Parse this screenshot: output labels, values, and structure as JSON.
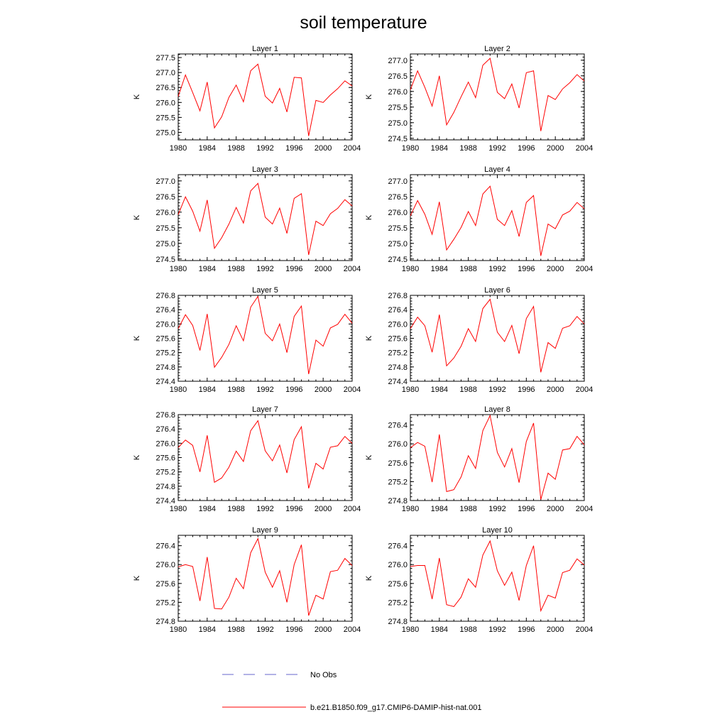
{
  "title": "soil temperature",
  "legend": {
    "no_obs_label": "No Obs",
    "no_obs_color": "#6666cc",
    "run_label": "b.e21.B1850.f09_g17.CMIP6-DAMIP-hist-nat.001",
    "run_color": "#ff0000"
  },
  "chart_data": [
    {
      "type": "line",
      "title": "Layer 1",
      "ylabel": "K",
      "xlim": [
        1980,
        2004
      ],
      "xticks": [
        1980,
        1984,
        1988,
        1992,
        1996,
        2000,
        2004
      ],
      "ylim": [
        274.75,
        277.62
      ],
      "yticks": [
        275.0,
        275.5,
        276.0,
        276.5,
        277.0,
        277.5
      ],
      "x": [
        1980,
        1981,
        1982,
        1983,
        1984,
        1985,
        1986,
        1987,
        1988,
        1989,
        1990,
        1991,
        1992,
        1993,
        1994,
        1995,
        1996,
        1997,
        1998,
        1999,
        2000,
        2001,
        2002,
        2003,
        2004
      ],
      "series": [
        {
          "name": "b.e21.B1850.f09_g17.CMIP6-DAMIP-hist-nat.001",
          "values": [
            276.2,
            276.92,
            276.33,
            275.72,
            276.68,
            275.15,
            275.52,
            276.17,
            276.58,
            276.02,
            277.06,
            277.28,
            276.21,
            275.98,
            276.47,
            275.68,
            276.84,
            276.82,
            274.88,
            276.07,
            276.0,
            276.25,
            276.46,
            276.72,
            276.55
          ]
        }
      ]
    },
    {
      "type": "line",
      "title": "Layer 2",
      "ylabel": "K",
      "xlim": [
        1980,
        2004
      ],
      "xticks": [
        1980,
        1984,
        1988,
        1992,
        1996,
        2000,
        2004
      ],
      "ylim": [
        274.45,
        277.2
      ],
      "yticks": [
        274.5,
        275.0,
        275.5,
        276.0,
        276.5,
        277.0
      ],
      "x": [
        1980,
        1981,
        1982,
        1983,
        1984,
        1985,
        1986,
        1987,
        1988,
        1989,
        1990,
        1991,
        1992,
        1993,
        1994,
        1995,
        1996,
        1997,
        1998,
        1999,
        2000,
        2001,
        2002,
        2003,
        2004
      ],
      "series": [
        {
          "name": "b.e21.B1850.f09_g17.CMIP6-DAMIP-hist-nat.001",
          "values": [
            276.05,
            276.66,
            276.13,
            275.53,
            276.5,
            274.93,
            275.33,
            275.83,
            276.3,
            275.8,
            276.84,
            277.06,
            275.97,
            275.77,
            276.24,
            275.47,
            276.6,
            276.66,
            274.73,
            275.87,
            275.74,
            276.08,
            276.28,
            276.54,
            276.33
          ]
        }
      ]
    },
    {
      "type": "line",
      "title": "Layer 3",
      "ylabel": "K",
      "xlim": [
        1980,
        2004
      ],
      "xticks": [
        1980,
        1984,
        1988,
        1992,
        1996,
        2000,
        2004
      ],
      "ylim": [
        274.45,
        277.2
      ],
      "yticks": [
        274.5,
        275.0,
        275.5,
        276.0,
        276.5,
        277.0
      ],
      "x": [
        1980,
        1981,
        1982,
        1983,
        1984,
        1985,
        1986,
        1987,
        1988,
        1989,
        1990,
        1991,
        1992,
        1993,
        1994,
        1995,
        1996,
        1997,
        1998,
        1999,
        2000,
        2001,
        2002,
        2003,
        2004
      ],
      "series": [
        {
          "name": "b.e21.B1850.f09_g17.CMIP6-DAMIP-hist-nat.001",
          "values": [
            275.92,
            276.49,
            276.03,
            275.39,
            276.39,
            274.84,
            275.18,
            275.62,
            276.15,
            275.65,
            276.68,
            276.92,
            275.84,
            275.62,
            276.13,
            275.32,
            276.44,
            276.59,
            274.63,
            275.71,
            275.57,
            275.95,
            276.12,
            276.4,
            276.2
          ]
        }
      ]
    },
    {
      "type": "line",
      "title": "Layer 4",
      "ylabel": "K",
      "xlim": [
        1980,
        2004
      ],
      "xticks": [
        1980,
        1984,
        1988,
        1992,
        1996,
        2000,
        2004
      ],
      "ylim": [
        274.45,
        277.2
      ],
      "yticks": [
        274.5,
        275.0,
        275.5,
        276.0,
        276.5,
        277.0
      ],
      "x": [
        1980,
        1981,
        1982,
        1983,
        1984,
        1985,
        1986,
        1987,
        1988,
        1989,
        1990,
        1991,
        1992,
        1993,
        1994,
        1995,
        1996,
        1997,
        1998,
        1999,
        2000,
        2001,
        2002,
        2003,
        2004
      ],
      "series": [
        {
          "name": "b.e21.B1850.f09_g17.CMIP6-DAMIP-hist-nat.001",
          "values": [
            275.88,
            276.37,
            275.93,
            275.29,
            276.33,
            274.79,
            275.13,
            275.51,
            276.02,
            275.57,
            276.58,
            276.83,
            275.77,
            275.57,
            276.05,
            275.22,
            276.31,
            276.53,
            274.6,
            275.62,
            275.47,
            275.91,
            276.03,
            276.31,
            276.11
          ]
        }
      ]
    },
    {
      "type": "line",
      "title": "Layer 5",
      "ylabel": "K",
      "xlim": [
        1980,
        2004
      ],
      "xticks": [
        1980,
        1984,
        1988,
        1992,
        1996,
        2000,
        2004
      ],
      "ylim": [
        274.4,
        276.8
      ],
      "yticks": [
        274.4,
        274.8,
        275.2,
        275.6,
        276.0,
        276.4,
        276.8
      ],
      "x": [
        1980,
        1981,
        1982,
        1983,
        1984,
        1985,
        1986,
        1987,
        1988,
        1989,
        1990,
        1991,
        1992,
        1993,
        1994,
        1995,
        1996,
        1997,
        1998,
        1999,
        2000,
        2001,
        2002,
        2003,
        2004
      ],
      "series": [
        {
          "name": "b.e21.B1850.f09_g17.CMIP6-DAMIP-hist-nat.001",
          "values": [
            275.87,
            276.26,
            275.96,
            275.26,
            276.28,
            274.79,
            275.07,
            275.43,
            275.95,
            275.53,
            276.47,
            276.77,
            275.74,
            275.53,
            276.0,
            275.2,
            276.21,
            276.5,
            274.6,
            275.55,
            275.38,
            275.89,
            275.99,
            276.27,
            276.02
          ]
        }
      ]
    },
    {
      "type": "line",
      "title": "Layer 6",
      "ylabel": "K",
      "xlim": [
        1980,
        2004
      ],
      "xticks": [
        1980,
        1984,
        1988,
        1992,
        1996,
        2000,
        2004
      ],
      "ylim": [
        274.4,
        276.8
      ],
      "yticks": [
        274.4,
        274.8,
        275.2,
        275.6,
        276.0,
        276.4,
        276.8
      ],
      "x": [
        1980,
        1981,
        1982,
        1983,
        1984,
        1985,
        1986,
        1987,
        1988,
        1989,
        1990,
        1991,
        1992,
        1993,
        1994,
        1995,
        1996,
        1997,
        1998,
        1999,
        2000,
        2001,
        2002,
        2003,
        2004
      ],
      "series": [
        {
          "name": "b.e21.B1850.f09_g17.CMIP6-DAMIP-hist-nat.001",
          "values": [
            275.87,
            276.19,
            275.95,
            275.21,
            276.26,
            274.83,
            275.05,
            275.38,
            275.87,
            275.51,
            276.43,
            276.69,
            275.77,
            275.51,
            275.96,
            275.17,
            276.15,
            276.49,
            274.65,
            275.48,
            275.32,
            275.88,
            275.95,
            276.21,
            276.0
          ]
        }
      ]
    },
    {
      "type": "line",
      "title": "Layer 7",
      "ylabel": "K",
      "xlim": [
        1980,
        2004
      ],
      "xticks": [
        1980,
        1984,
        1988,
        1992,
        1996,
        2000,
        2004
      ],
      "ylim": [
        274.4,
        276.8
      ],
      "yticks": [
        274.4,
        274.8,
        275.2,
        275.6,
        276.0,
        276.4,
        276.8
      ],
      "x": [
        1980,
        1981,
        1982,
        1983,
        1984,
        1985,
        1986,
        1987,
        1988,
        1989,
        1990,
        1991,
        1992,
        1993,
        1994,
        1995,
        1996,
        1997,
        1998,
        1999,
        2000,
        2001,
        2002,
        2003,
        2004
      ],
      "series": [
        {
          "name": "b.e21.B1850.f09_g17.CMIP6-DAMIP-hist-nat.001",
          "values": [
            275.88,
            276.09,
            275.94,
            275.2,
            276.22,
            274.91,
            275.03,
            275.33,
            275.78,
            275.49,
            276.35,
            276.63,
            275.79,
            275.51,
            275.95,
            275.17,
            276.1,
            276.46,
            274.74,
            275.44,
            275.28,
            275.89,
            275.93,
            276.19,
            276.0
          ]
        }
      ]
    },
    {
      "type": "line",
      "title": "Layer 8",
      "ylabel": "K",
      "xlim": [
        1980,
        2004
      ],
      "xticks": [
        1980,
        1984,
        1988,
        1992,
        1996,
        2000,
        2004
      ],
      "ylim": [
        274.8,
        276.62
      ],
      "yticks": [
        274.8,
        275.2,
        275.6,
        276.0,
        276.4
      ],
      "x": [
        1980,
        1981,
        1982,
        1983,
        1984,
        1985,
        1986,
        1987,
        1988,
        1989,
        1990,
        1991,
        1992,
        1993,
        1994,
        1995,
        1996,
        1997,
        1998,
        1999,
        2000,
        2001,
        2002,
        2003,
        2004
      ],
      "series": [
        {
          "name": "b.e21.B1850.f09_g17.CMIP6-DAMIP-hist-nat.001",
          "values": [
            275.92,
            276.03,
            275.95,
            275.19,
            276.2,
            274.99,
            275.03,
            275.3,
            275.75,
            275.48,
            276.28,
            276.6,
            275.82,
            275.51,
            275.9,
            275.18,
            276.05,
            276.44,
            274.82,
            275.38,
            275.25,
            275.87,
            275.9,
            276.16,
            275.98
          ]
        }
      ]
    },
    {
      "type": "line",
      "title": "Layer 9",
      "ylabel": "K",
      "xlim": [
        1980,
        2004
      ],
      "xticks": [
        1980,
        1984,
        1988,
        1992,
        1996,
        2000,
        2004
      ],
      "ylim": [
        274.8,
        276.62
      ],
      "yticks": [
        274.8,
        275.2,
        275.6,
        276.0,
        276.4
      ],
      "x": [
        1980,
        1981,
        1982,
        1983,
        1984,
        1985,
        1986,
        1987,
        1988,
        1989,
        1990,
        1991,
        1992,
        1993,
        1994,
        1995,
        1996,
        1997,
        1998,
        1999,
        2000,
        2001,
        2002,
        2003,
        2004
      ],
      "series": [
        {
          "name": "b.e21.B1850.f09_g17.CMIP6-DAMIP-hist-nat.001",
          "values": [
            275.95,
            276.0,
            275.96,
            275.23,
            276.16,
            275.07,
            275.06,
            275.31,
            275.71,
            275.49,
            276.25,
            276.55,
            275.84,
            275.52,
            275.87,
            275.2,
            276.0,
            276.42,
            274.92,
            275.35,
            275.27,
            275.85,
            275.88,
            276.13,
            275.98
          ]
        }
      ]
    },
    {
      "type": "line",
      "title": "Layer 10",
      "ylabel": "K",
      "xlim": [
        1980,
        2004
      ],
      "xticks": [
        1980,
        1984,
        1988,
        1992,
        1996,
        2000,
        2004
      ],
      "ylim": [
        274.8,
        276.62
      ],
      "yticks": [
        274.8,
        275.2,
        275.6,
        276.0,
        276.4
      ],
      "x": [
        1980,
        1981,
        1982,
        1983,
        1984,
        1985,
        1986,
        1987,
        1988,
        1989,
        1990,
        1991,
        1992,
        1993,
        1994,
        1995,
        1996,
        1997,
        1998,
        1999,
        2000,
        2001,
        2002,
        2003,
        2004
      ],
      "series": [
        {
          "name": "b.e21.B1850.f09_g17.CMIP6-DAMIP-hist-nat.001",
          "values": [
            275.96,
            275.98,
            275.98,
            275.27,
            276.14,
            275.15,
            275.11,
            275.31,
            275.7,
            275.52,
            276.2,
            276.5,
            275.87,
            275.56,
            275.84,
            275.24,
            275.98,
            276.4,
            275.02,
            275.35,
            275.29,
            275.83,
            275.88,
            276.12,
            275.99
          ]
        }
      ]
    }
  ]
}
